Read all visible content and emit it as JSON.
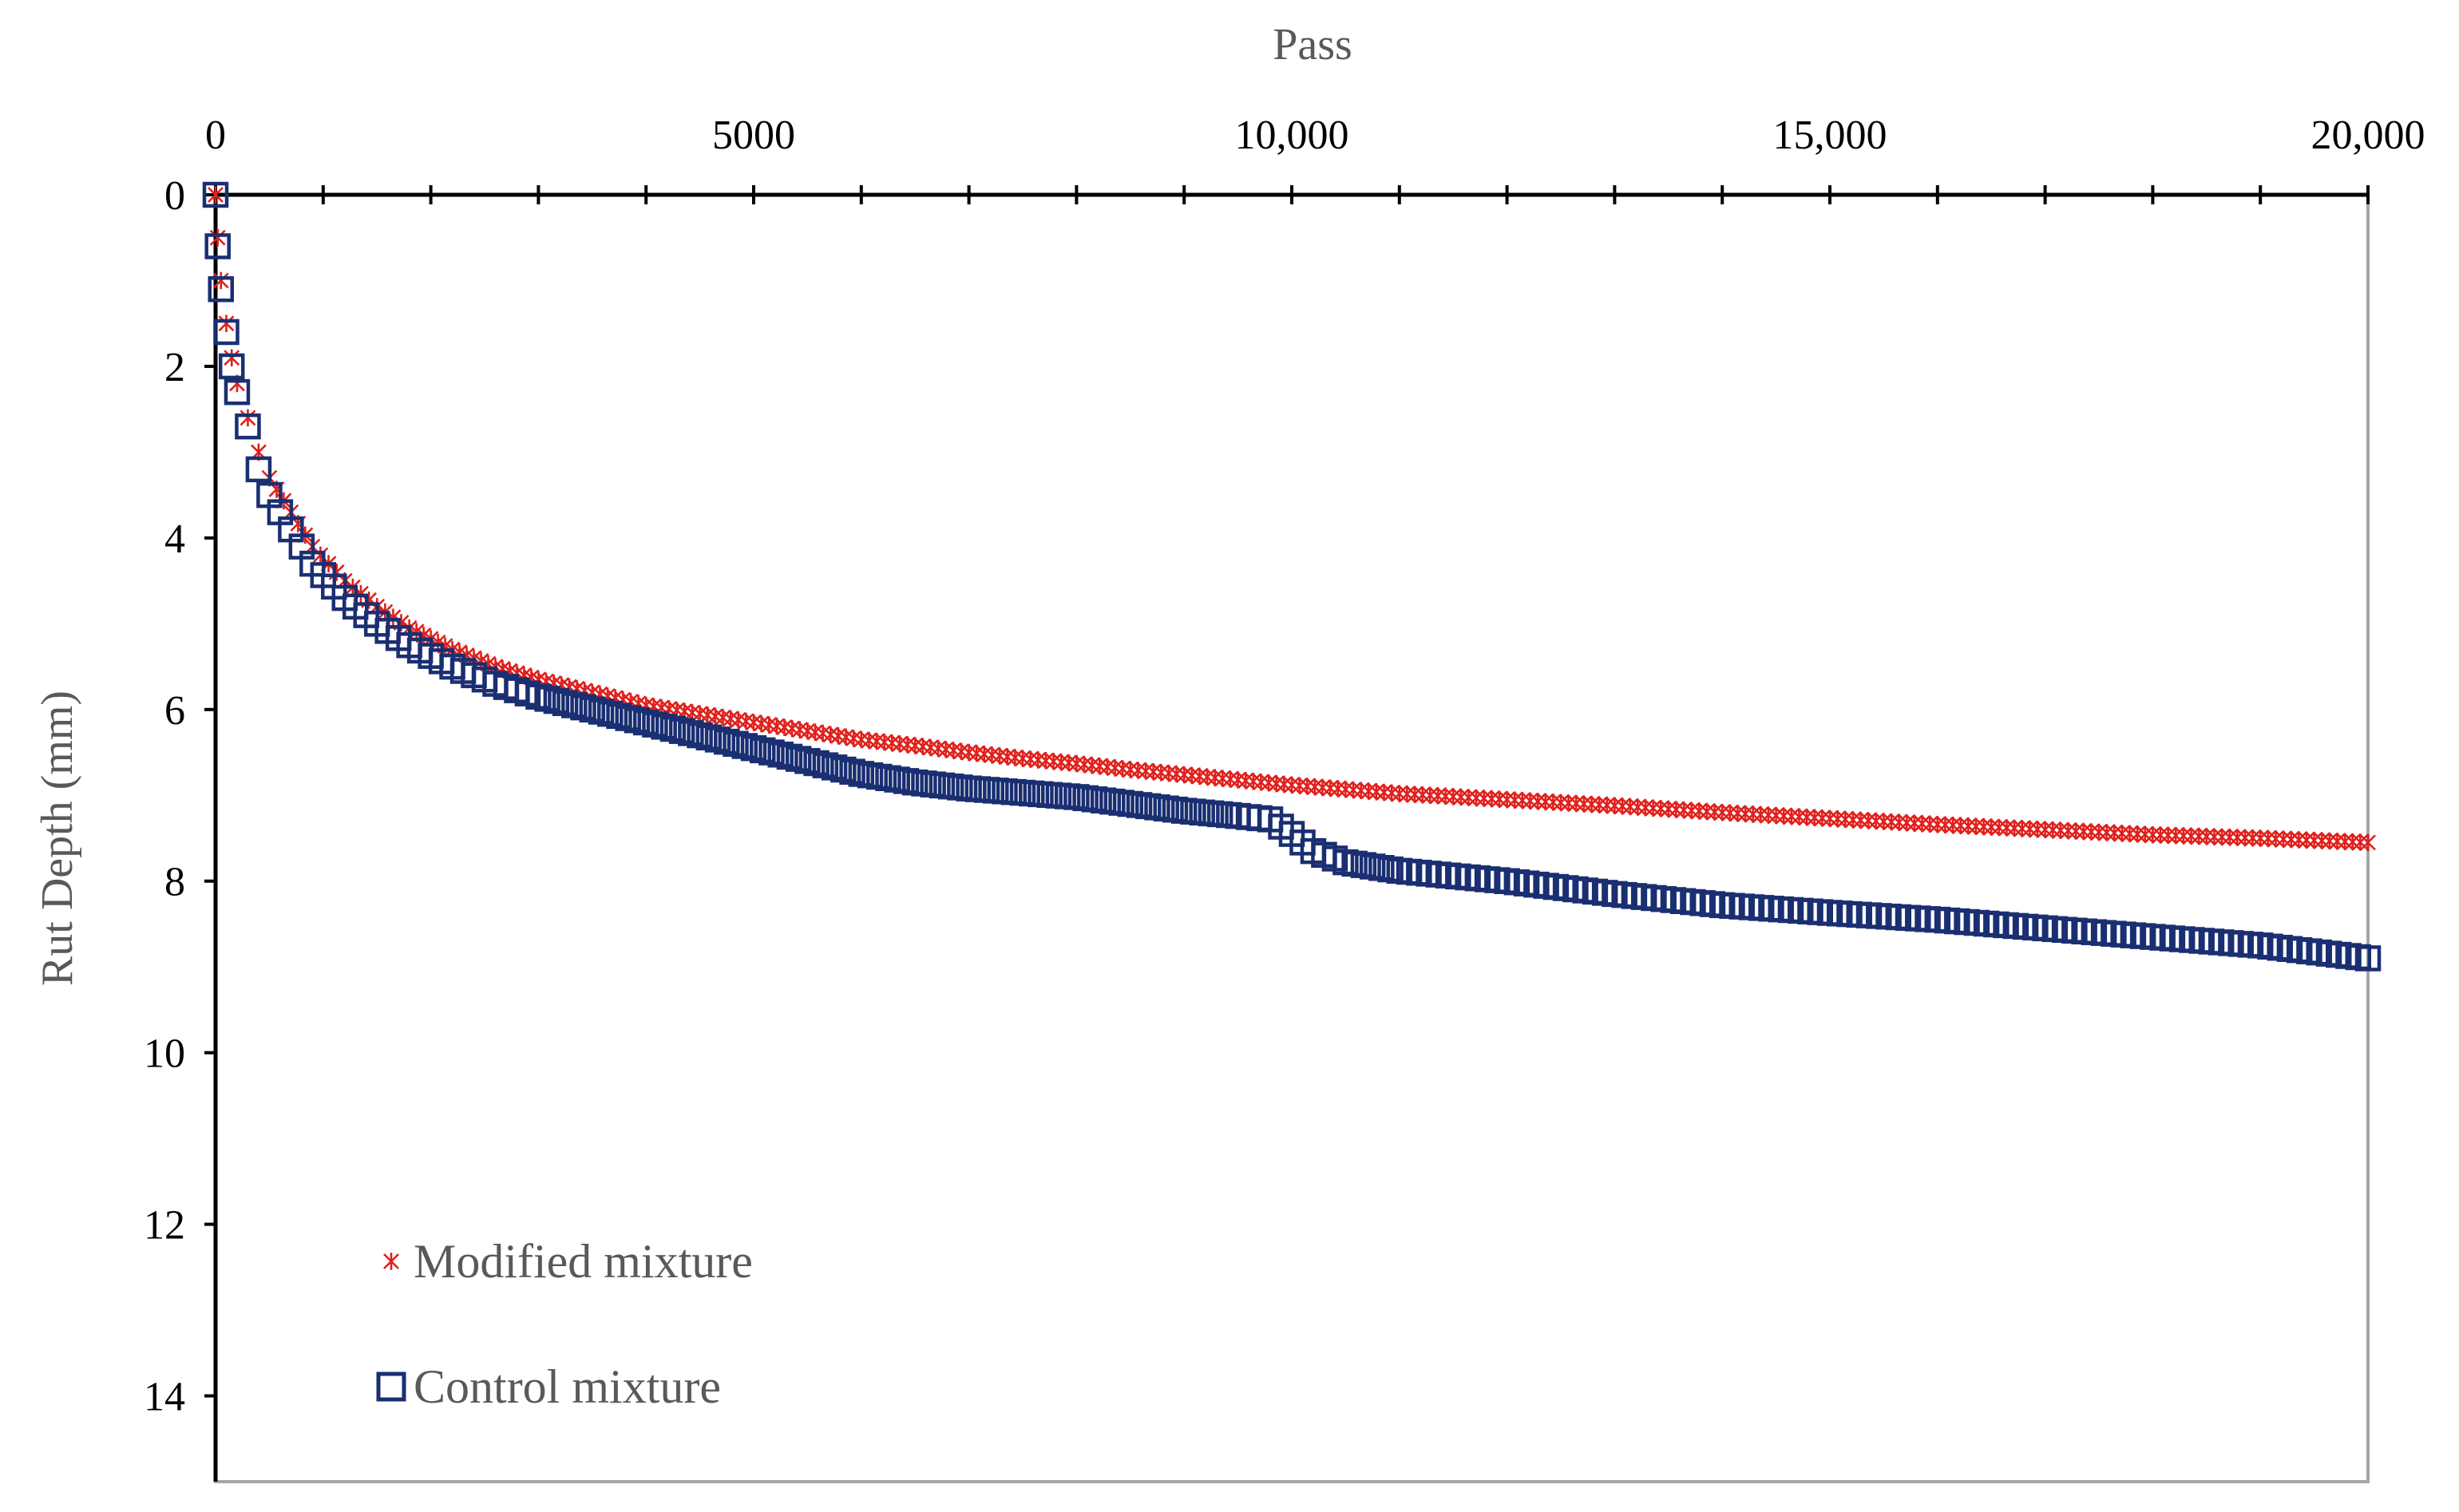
{
  "chart_data": {
    "type": "scatter",
    "title": "",
    "xlabel": "Pass",
    "ylabel": "Rut Depth (mm)",
    "xlim": [
      0,
      20000
    ],
    "ylim": [
      0,
      15
    ],
    "y_inverted": true,
    "x_axis_position": "top",
    "grid": false,
    "legend_position": "bottom-left",
    "x_tick_labels": [
      "0",
      "5000",
      "10,000",
      "15,000",
      "20,000"
    ],
    "x_tick_values": [
      0,
      5000,
      10000,
      15000,
      20000
    ],
    "x_minor_tick_values": [
      0,
      1000,
      2000,
      3000,
      4000,
      5000,
      6000,
      7000,
      8000,
      9000,
      10000,
      11000,
      12000,
      13000,
      14000,
      15000,
      16000,
      17000,
      18000,
      19000,
      20000
    ],
    "y_tick_labels": [
      "0",
      "2",
      "4",
      "6",
      "8",
      "10",
      "12",
      "14"
    ],
    "y_tick_values": [
      0,
      2,
      4,
      6,
      8,
      10,
      12,
      14
    ],
    "series": [
      {
        "name": "Modified mixture",
        "marker": "asterisk",
        "color": "#e0201c",
        "x": [
          0,
          20,
          50,
          100,
          150,
          200,
          300,
          400,
          500,
          700,
          900,
          1200,
          1500,
          1800,
          2200,
          2600,
          3000,
          3500,
          4000,
          4500,
          5000,
          5500,
          6000,
          6500,
          7000,
          7500,
          8000,
          8500,
          9000,
          9500,
          10000,
          10500,
          11000,
          12000,
          13000,
          14000,
          15000,
          16000,
          17000,
          18000,
          19000,
          20000
        ],
        "y": [
          0,
          0.5,
          1.0,
          1.5,
          1.9,
          2.2,
          2.6,
          3.0,
          3.3,
          3.7,
          4.1,
          4.5,
          4.8,
          5.05,
          5.3,
          5.5,
          5.65,
          5.8,
          5.95,
          6.05,
          6.15,
          6.25,
          6.35,
          6.42,
          6.5,
          6.57,
          6.63,
          6.7,
          6.76,
          6.82,
          6.88,
          6.93,
          6.98,
          7.05,
          7.12,
          7.2,
          7.27,
          7.34,
          7.4,
          7.46,
          7.5,
          7.55
        ]
      },
      {
        "name": "Control mixture",
        "marker": "square",
        "color": "#1a2f72",
        "x": [
          0,
          20,
          50,
          100,
          150,
          200,
          300,
          400,
          500,
          700,
          900,
          1200,
          1500,
          1800,
          2200,
          2600,
          3000,
          3500,
          4000,
          4500,
          5000,
          5500,
          6000,
          6500,
          7000,
          7500,
          8000,
          8500,
          9000,
          9500,
          9800,
          10000,
          10200,
          10500,
          11000,
          12000,
          13000,
          14000,
          15000,
          16000,
          17000,
          18000,
          19000,
          20000
        ],
        "y": [
          0,
          0.6,
          1.1,
          1.6,
          2.0,
          2.3,
          2.7,
          3.2,
          3.5,
          3.9,
          4.3,
          4.7,
          5.0,
          5.25,
          5.5,
          5.7,
          5.85,
          6.0,
          6.15,
          6.3,
          6.45,
          6.6,
          6.75,
          6.85,
          6.92,
          6.97,
          7.02,
          7.1,
          7.18,
          7.24,
          7.28,
          7.45,
          7.65,
          7.78,
          7.88,
          8.0,
          8.15,
          8.28,
          8.37,
          8.45,
          8.55,
          8.65,
          8.75,
          8.9
        ]
      }
    ]
  }
}
